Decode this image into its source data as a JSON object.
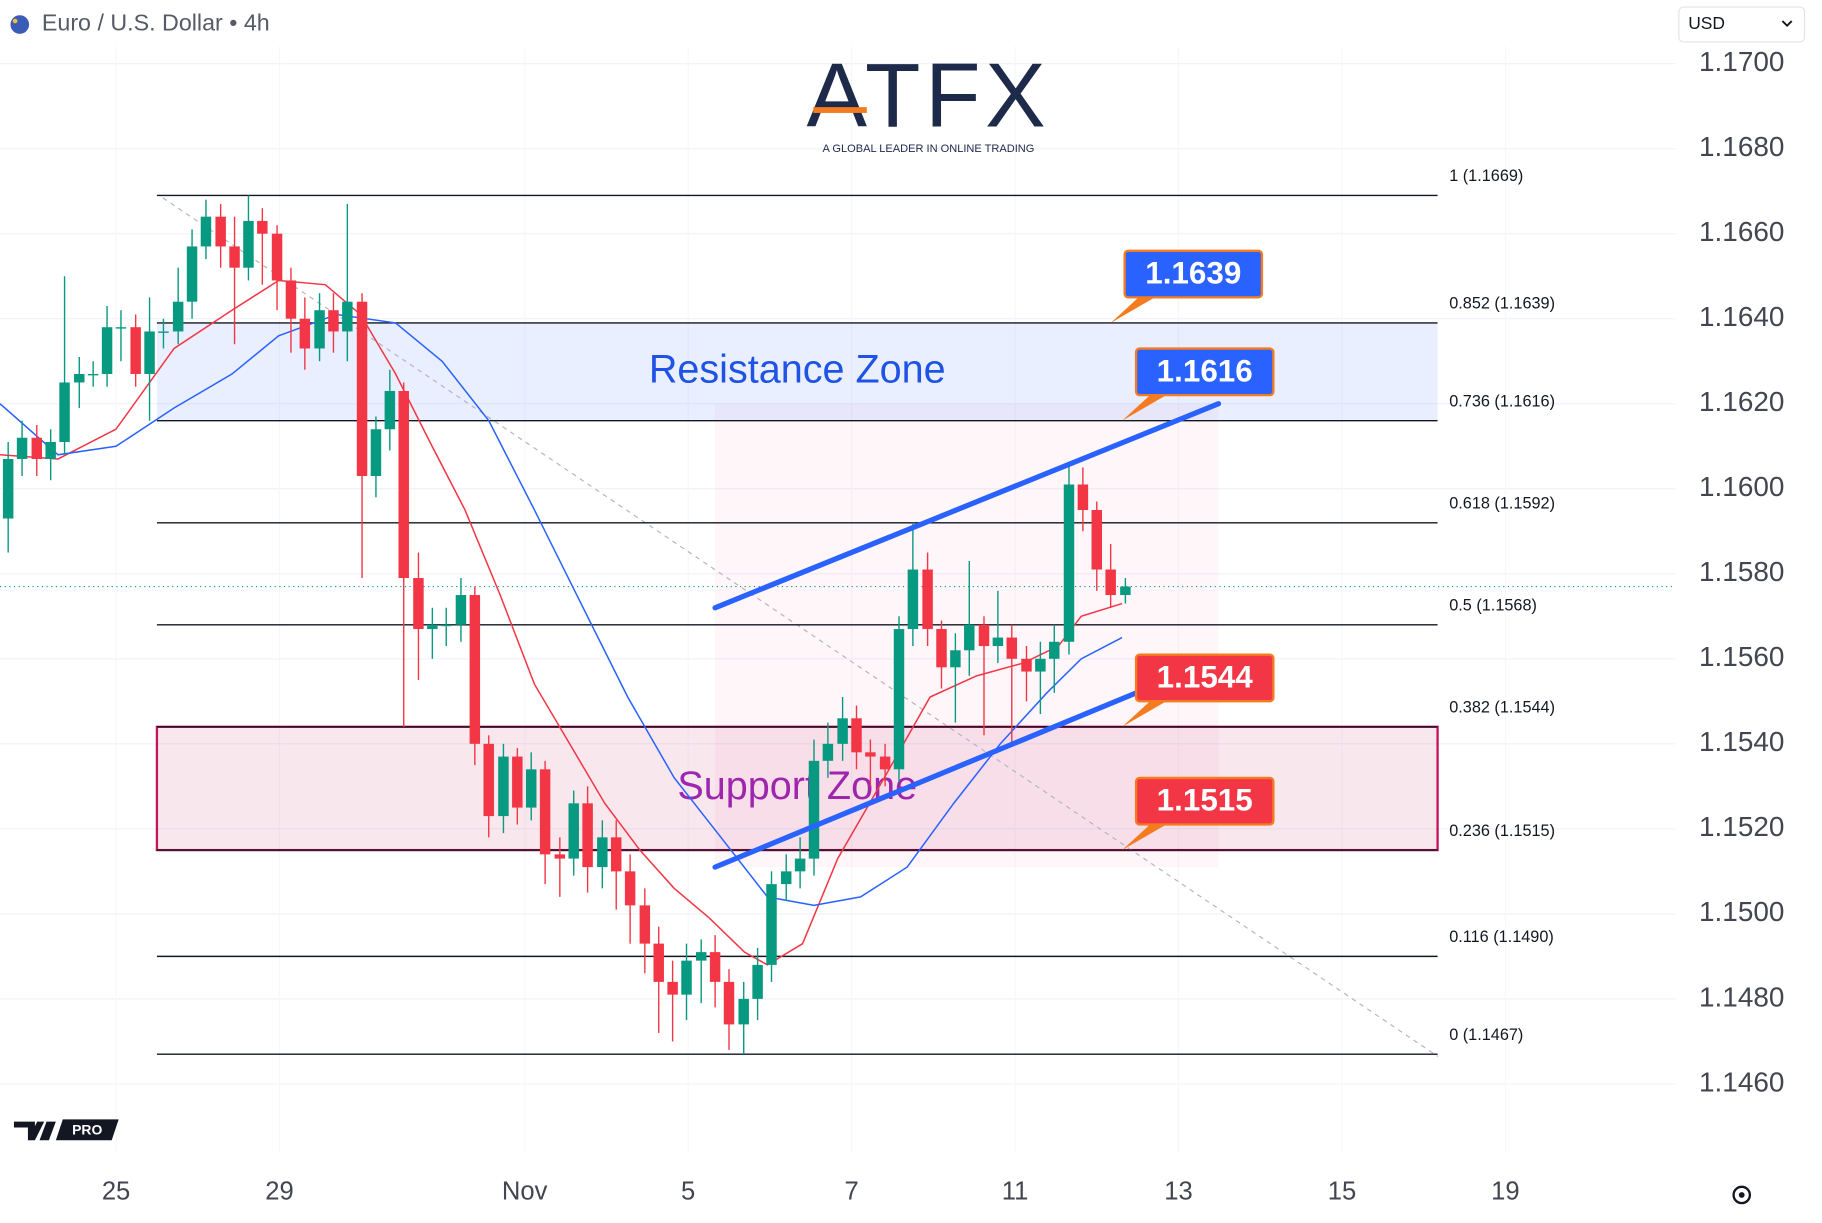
{
  "header": {
    "symbol": "Euro / U.S. Dollar • 4h",
    "currency": "USD"
  },
  "logo": {
    "name": "ATFX",
    "tagline": "A GLOBAL LEADER IN ONLINE TRADING"
  },
  "badge": "PRO",
  "chart_data": {
    "type": "candlestick",
    "x": [
      -1.32,
      -1.15,
      -0.97,
      -0.8,
      -0.63,
      -0.45,
      -0.28,
      -0.11,
      0.06,
      0.24,
      0.41,
      0.58,
      0.76,
      0.93,
      1.1,
      1.28,
      1.45,
      1.62,
      1.79,
      1.97,
      2.14,
      2.31,
      2.49,
      2.66,
      2.83,
      3.01,
      3.18,
      3.35,
      3.52,
      3.7,
      3.87,
      4.04,
      4.22,
      4.39,
      4.56,
      4.74,
      4.91,
      5.08,
      5.25,
      5.43,
      5.6,
      5.77,
      5.95,
      6.12,
      6.29,
      6.47,
      6.64,
      6.81,
      6.98,
      7.16,
      7.33,
      7.5,
      7.68,
      7.85,
      8.02,
      8.2,
      8.37,
      8.54,
      8.71,
      8.89,
      9.06,
      9.23,
      9.41,
      9.58,
      9.75,
      9.93,
      10.1,
      10.27,
      10.44,
      10.62,
      10.79,
      10.96,
      11.14,
      11.31,
      11.48,
      11.66,
      11.83,
      12.0,
      12.17,
      12.35
    ],
    "open": [
      1.1593,
      1.1607,
      1.1612,
      1.1607,
      1.1611,
      1.1625,
      1.1627,
      1.1627,
      1.1638,
      1.1638,
      1.1627,
      1.1637,
      1.1637,
      1.1644,
      1.1657,
      1.1664,
      1.1657,
      1.1652,
      1.1663,
      1.166,
      1.1649,
      1.164,
      1.1633,
      1.1642,
      1.1637,
      1.1644,
      1.1603,
      1.1614,
      1.1623,
      1.1579,
      1.1567,
      1.1568,
      1.1568,
      1.1575,
      1.154,
      1.1523,
      1.1537,
      1.1525,
      1.1534,
      1.1514,
      1.1513,
      1.1526,
      1.1511,
      1.1518,
      1.151,
      1.1502,
      1.1493,
      1.1484,
      1.1481,
      1.1489,
      1.1491,
      1.1484,
      1.1474,
      1.148,
      1.1488,
      1.1507,
      1.151,
      1.1513,
      1.1536,
      1.154,
      1.1546,
      1.1538,
      1.1537,
      1.1534,
      1.1567,
      1.1581,
      1.1567,
      1.1558,
      1.1562,
      1.1568,
      1.1563,
      1.1565,
      1.156,
      1.1557,
      1.156,
      1.1564,
      1.1601,
      1.1595,
      1.1581,
      1.1575
    ],
    "high": [
      1.1611,
      1.1616,
      1.1615,
      1.1614,
      1.165,
      1.1631,
      1.163,
      1.1643,
      1.1642,
      1.1641,
      1.1645,
      1.164,
      1.1652,
      1.1661,
      1.1668,
      1.1667,
      1.1664,
      1.1669,
      1.1666,
      1.1662,
      1.1652,
      1.1645,
      1.1646,
      1.1646,
      1.1667,
      1.1646,
      1.1617,
      1.1628,
      1.1625,
      1.1585,
      1.1572,
      1.1572,
      1.1579,
      1.1577,
      1.1542,
      1.154,
      1.1539,
      1.1538,
      1.1536,
      1.1518,
      1.1529,
      1.153,
      1.1522,
      1.1522,
      1.1514,
      1.1506,
      1.1497,
      1.1489,
      1.1493,
      1.1494,
      1.1495,
      1.1487,
      1.1484,
      1.1492,
      1.151,
      1.1514,
      1.1518,
      1.1541,
      1.1545,
      1.1551,
      1.1549,
      1.1541,
      1.154,
      1.157,
      1.1592,
      1.1585,
      1.1569,
      1.1566,
      1.1583,
      1.157,
      1.1576,
      1.1568,
      1.1563,
      1.1564,
      1.1568,
      1.1606,
      1.1605,
      1.1597,
      1.1587,
      1.1579
    ],
    "low": [
      1.1585,
      1.1603,
      1.1603,
      1.1602,
      1.1608,
      1.1619,
      1.1624,
      1.1624,
      1.163,
      1.1624,
      1.1616,
      1.1633,
      1.1634,
      1.164,
      1.1654,
      1.1652,
      1.1634,
      1.1649,
      1.1648,
      1.1642,
      1.1632,
      1.1628,
      1.163,
      1.1632,
      1.163,
      1.1579,
      1.1598,
      1.1609,
      1.1544,
      1.1555,
      1.156,
      1.1563,
      1.1564,
      1.1535,
      1.1518,
      1.1519,
      1.1521,
      1.1522,
      1.1507,
      1.1504,
      1.1509,
      1.1505,
      1.1506,
      1.1501,
      1.1493,
      1.1486,
      1.1472,
      1.147,
      1.1475,
      1.1479,
      1.1478,
      1.1468,
      1.1467,
      1.1475,
      1.1484,
      1.1503,
      1.1506,
      1.1509,
      1.1532,
      1.1536,
      1.1534,
      1.153,
      1.153,
      1.1531,
      1.1563,
      1.1563,
      1.1553,
      1.1545,
      1.1556,
      1.1542,
      1.1559,
      1.154,
      1.155,
      1.1547,
      1.1552,
      1.1561,
      1.159,
      1.1576,
      1.1572,
      1.1573
    ],
    "close": [
      1.1607,
      1.1612,
      1.1607,
      1.1611,
      1.1625,
      1.1627,
      1.1627,
      1.1638,
      1.1638,
      1.1627,
      1.1637,
      1.1637,
      1.1644,
      1.1657,
      1.1664,
      1.1657,
      1.1652,
      1.1663,
      1.166,
      1.1649,
      1.164,
      1.1633,
      1.1642,
      1.1637,
      1.1644,
      1.1603,
      1.1614,
      1.1623,
      1.1579,
      1.1567,
      1.1568,
      1.1568,
      1.1575,
      1.154,
      1.1523,
      1.1537,
      1.1525,
      1.1534,
      1.1514,
      1.1513,
      1.1526,
      1.1511,
      1.1518,
      1.151,
      1.1502,
      1.1493,
      1.1484,
      1.1481,
      1.1489,
      1.1491,
      1.1484,
      1.1474,
      1.148,
      1.1488,
      1.1507,
      1.151,
      1.1513,
      1.1536,
      1.154,
      1.1546,
      1.1538,
      1.1537,
      1.1534,
      1.1567,
      1.1581,
      1.1567,
      1.1558,
      1.1562,
      1.1568,
      1.1563,
      1.1565,
      1.156,
      1.1557,
      1.156,
      1.1564,
      1.1601,
      1.1595,
      1.1581,
      1.1575,
      1.1577
    ],
    "up_color": "#089981",
    "down_color": "#f23645",
    "xlim": [
      -1.42,
      19.08
    ],
    "xticks": [
      {
        "value": 0,
        "label": "25"
      },
      {
        "value": 2,
        "label": "29"
      },
      {
        "value": 5,
        "label": "Nov"
      },
      {
        "value": 7,
        "label": "5"
      },
      {
        "value": 9,
        "label": "7"
      },
      {
        "value": 11,
        "label": "11"
      },
      {
        "value": 13,
        "label": "13"
      },
      {
        "value": 15,
        "label": "15"
      },
      {
        "value": 17,
        "label": "19"
      }
    ],
    "ylim": [
      1.1444,
      1.1704
    ],
    "yticks": [
      {
        "value": 1.146,
        "label": "1.1460"
      },
      {
        "value": 1.148,
        "label": "1.1480"
      },
      {
        "value": 1.15,
        "label": "1.1500"
      },
      {
        "value": 1.152,
        "label": "1.1520"
      },
      {
        "value": 1.154,
        "label": "1.1540"
      },
      {
        "value": 1.156,
        "label": "1.1560"
      },
      {
        "value": 1.158,
        "label": "1.1580"
      },
      {
        "value": 1.16,
        "label": "1.1600"
      },
      {
        "value": 1.162,
        "label": "1.1620"
      },
      {
        "value": 1.164,
        "label": "1.1640"
      },
      {
        "value": 1.166,
        "label": "1.1660"
      },
      {
        "value": 1.168,
        "label": "1.1680"
      },
      {
        "value": 1.17,
        "label": "1.1700"
      }
    ],
    "grid": true,
    "last_price": 1.1577,
    "moving_averages": [
      {
        "color": "#f23645",
        "x": [
          -1.42,
          -0.71,
          0,
          0.71,
          1.42,
          1.99,
          2.56,
          2.99,
          3.42,
          3.84,
          4.27,
          4.7,
          5.12,
          5.55,
          5.98,
          6.41,
          6.83,
          7.26,
          7.69,
          7.97,
          8.4,
          8.83,
          9.4,
          9.96,
          10.53,
          11.1,
          11.53,
          11.81,
          12.31
        ],
        "values": [
          1.1608,
          1.1607,
          1.1614,
          1.1633,
          1.1642,
          1.1649,
          1.1648,
          1.1641,
          1.1627,
          1.1611,
          1.1595,
          1.1575,
          1.1554,
          1.154,
          1.1526,
          1.1515,
          1.1506,
          1.1499,
          1.1491,
          1.1488,
          1.1493,
          1.1513,
          1.1532,
          1.1551,
          1.1556,
          1.1559,
          1.1563,
          1.157,
          1.1573
        ]
      },
      {
        "color": "#2962ff",
        "x": [
          -1.42,
          -0.71,
          0,
          0.71,
          1.42,
          1.99,
          2.7,
          3.42,
          3.99,
          4.56,
          5.12,
          5.69,
          6.26,
          6.83,
          7.4,
          7.97,
          8.54,
          9.11,
          9.68,
          10.25,
          10.82,
          11.39,
          11.81,
          12.31
        ],
        "values": [
          1.162,
          1.1608,
          1.161,
          1.1619,
          1.1627,
          1.1636,
          1.1641,
          1.1639,
          1.163,
          1.1616,
          1.1595,
          1.1573,
          1.1551,
          1.1532,
          1.1518,
          1.1504,
          1.1502,
          1.1504,
          1.1511,
          1.1526,
          1.154,
          1.1552,
          1.156,
          1.1565
        ]
      }
    ],
    "fibonacci": {
      "xrange": [
        0.5,
        16.17
      ],
      "levels": [
        {
          "value": 1.1669,
          "label": "1 (1.1669)"
        },
        {
          "value": 1.1639,
          "label": "0.852 (1.1639)"
        },
        {
          "value": 1.1616,
          "label": "0.736 (1.1616)"
        },
        {
          "value": 1.1592,
          "label": "0.618 (1.1592)"
        },
        {
          "value": 1.1568,
          "label": "0.5 (1.1568)"
        },
        {
          "value": 1.1544,
          "label": "0.382 (1.1544)"
        },
        {
          "value": 1.1515,
          "label": "0.236 (1.1515)"
        },
        {
          "value": 1.149,
          "label": "0.116 (1.1490)"
        },
        {
          "value": 1.1467,
          "label": "0 (1.1467)"
        }
      ]
    },
    "zones": [
      {
        "label": "Resistance Zone",
        "range": [
          1.1616,
          1.1639
        ],
        "color": "#2962ff",
        "label_color": "#1e53e5"
      },
      {
        "label": "Support Zone",
        "range": [
          1.1515,
          1.1544
        ],
        "color": "#c2185b",
        "label_color": "#9c27b0"
      }
    ],
    "channel": {
      "color": "#2962ff",
      "lines": [
        {
          "x": [
            7.33,
            13.49
          ],
          "values": [
            1.1572,
            1.162
          ]
        },
        {
          "x": [
            7.33,
            13.49
          ],
          "values": [
            1.1511,
            1.156
          ]
        }
      ]
    },
    "price_labels": [
      {
        "value": 1.1639,
        "x": 12.17,
        "color": "#2962ff"
      },
      {
        "value": 1.1616,
        "x": 12.31,
        "color": "#2962ff"
      },
      {
        "value": 1.1544,
        "x": 12.31,
        "color": "#f23645"
      },
      {
        "value": 1.1515,
        "x": 12.31,
        "color": "#f23645"
      }
    ]
  }
}
